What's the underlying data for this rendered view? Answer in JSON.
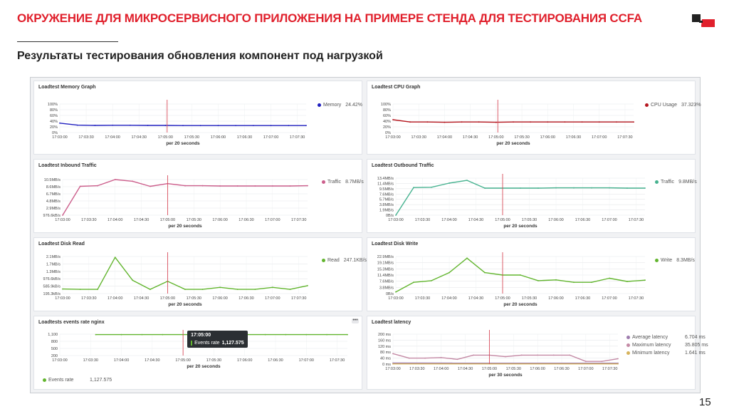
{
  "slide": {
    "title": "ОКРУЖЕНИЕ ДЛЯ МИКРОСЕРВИСНОГО ПРИЛОЖЕНИЯ НА ПРИМЕРЕ СТЕНДА ДЛЯ ТЕСТИРОВАНИЯ CCFA",
    "subtitle": "Результаты тестирования обновления компонент под нагрузкой",
    "page_number": "15",
    "accent_color": "#e0202c"
  },
  "chart_data": [
    {
      "id": "memory",
      "type": "line",
      "title": "Loadtest Memory Graph",
      "xlabel": "per 20 seconds",
      "x": [
        "17:03:00",
        "17:03:30",
        "17:04:00",
        "17:04:30",
        "17:05:00",
        "17:05:30",
        "17:06:00",
        "17:06:30",
        "17:07:00",
        "17:07:30"
      ],
      "x_values": [
        0,
        30,
        60,
        90,
        120,
        150,
        180,
        210,
        240,
        270
      ],
      "yticks": [
        "100%",
        "80%",
        "60%",
        "40%",
        "20%",
        "0%"
      ],
      "ylim": [
        0,
        100
      ],
      "marker_x": 122,
      "series": [
        {
          "name": "Memory",
          "legend_value": "24.42%",
          "color": "#1f1fbf",
          "points": [
            [
              0,
              33
            ],
            [
              20,
              26
            ],
            [
              40,
              25
            ],
            [
              60,
              25.5
            ],
            [
              80,
              25.5
            ],
            [
              100,
              25
            ],
            [
              120,
              25
            ],
            [
              140,
              24.5
            ],
            [
              160,
              24.5
            ],
            [
              180,
              24.5
            ],
            [
              200,
              24.5
            ],
            [
              220,
              24.4
            ],
            [
              240,
              24.4
            ],
            [
              260,
              24.4
            ],
            [
              280,
              24.4
            ]
          ]
        }
      ]
    },
    {
      "id": "cpu",
      "type": "line",
      "title": "Loadtest CPU Graph",
      "xlabel": "per 20 seconds",
      "x": [
        "17:03:00",
        "17:03:30",
        "17:04:00",
        "17:04:30",
        "17:05:00",
        "17:05:30",
        "17:06:00",
        "17:06:30",
        "17:07:00",
        "17:07:30"
      ],
      "x_values": [
        0,
        30,
        60,
        90,
        120,
        150,
        180,
        210,
        240,
        270
      ],
      "yticks": [
        "100%",
        "80%",
        "60%",
        "40%",
        "20%",
        "0%"
      ],
      "ylim": [
        0,
        100
      ],
      "marker_x": 122,
      "series": [
        {
          "name": "CPU Usage",
          "legend_value": "37.323%",
          "color": "#b5171f",
          "points": [
            [
              0,
              45
            ],
            [
              20,
              37
            ],
            [
              40,
              37
            ],
            [
              60,
              36
            ],
            [
              80,
              37
            ],
            [
              100,
              37
            ],
            [
              120,
              36
            ],
            [
              140,
              37
            ],
            [
              160,
              37
            ],
            [
              180,
              37
            ],
            [
              200,
              37
            ],
            [
              220,
              37
            ],
            [
              240,
              37
            ],
            [
              260,
              37
            ],
            [
              280,
              37
            ]
          ]
        }
      ]
    },
    {
      "id": "inbound",
      "type": "line",
      "title": "Loadtest Inbound Traffic",
      "xlabel": "per 20 seconds",
      "x": [
        "17:03:00",
        "17:03:30",
        "17:04:00",
        "17:04:30",
        "17:05:00",
        "17:05:30",
        "17:06:00",
        "17:06:30",
        "17:07:00",
        "17:07:30"
      ],
      "x_values": [
        0,
        30,
        60,
        90,
        120,
        150,
        180,
        210,
        240,
        270
      ],
      "yticks": [
        "10.5MB/s",
        "8.6MB/s",
        "6.7MB/s",
        "4.8MB/s",
        "2.9MB/s",
        "976.6kB/s"
      ],
      "ylim": [
        0,
        10.5
      ],
      "marker_x": 120,
      "series": [
        {
          "name": "Traffic",
          "legend_value": "8.7MB/s",
          "color": "#cc5f8c",
          "points": [
            [
              0,
              0
            ],
            [
              20,
              8.5
            ],
            [
              40,
              8.7
            ],
            [
              60,
              10.5
            ],
            [
              80,
              10
            ],
            [
              100,
              8.5
            ],
            [
              120,
              9.3
            ],
            [
              140,
              8.7
            ],
            [
              160,
              8.7
            ],
            [
              180,
              8.6
            ],
            [
              200,
              8.6
            ],
            [
              220,
              8.6
            ],
            [
              240,
              8.6
            ],
            [
              260,
              8.6
            ],
            [
              280,
              8.7
            ]
          ]
        }
      ]
    },
    {
      "id": "outbound",
      "type": "line",
      "title": "Loadtest Outbound Traffic",
      "xlabel": "per 20 seconds",
      "x": [
        "17:03:00",
        "17:03:30",
        "17:04:00",
        "17:04:30",
        "17:05:00",
        "17:05:30",
        "17:06:00",
        "17:06:30",
        "17:07:00",
        "17:07:30"
      ],
      "x_values": [
        0,
        30,
        60,
        90,
        120,
        150,
        180,
        210,
        240,
        270
      ],
      "yticks": [
        "13.4MB/s",
        "11.4MB/s",
        "9.5MB/s",
        "7.6MB/s",
        "5.7MB/s",
        "3.8MB/s",
        "1.9MB/s",
        "0B/s"
      ],
      "ylim": [
        0,
        13.4
      ],
      "marker_x": 120,
      "series": [
        {
          "name": "Traffic",
          "legend_value": "9.8MB/s",
          "color": "#46b28f",
          "points": [
            [
              0,
              0
            ],
            [
              20,
              10
            ],
            [
              40,
              10.1
            ],
            [
              60,
              11.6
            ],
            [
              80,
              12.6
            ],
            [
              100,
              9.8
            ],
            [
              120,
              9.8
            ],
            [
              140,
              9.8
            ],
            [
              160,
              9.8
            ],
            [
              180,
              9.9
            ],
            [
              200,
              9.9
            ],
            [
              220,
              9.9
            ],
            [
              240,
              9.9
            ],
            [
              260,
              9.8
            ],
            [
              280,
              9.8
            ]
          ]
        }
      ]
    },
    {
      "id": "disk-read",
      "type": "line",
      "title": "Loadtest Disk Read",
      "xlabel": "per 20 seconds",
      "x": [
        "17:03:00",
        "17:03:30",
        "17:04:00",
        "17:04:30",
        "17:05:00",
        "17:05:30",
        "17:06:00",
        "17:06:30",
        "17:07:00",
        "17:07:30"
      ],
      "x_values": [
        0,
        30,
        60,
        90,
        120,
        150,
        180,
        210,
        240,
        270
      ],
      "yticks": [
        "2.1MB/s",
        "1.7MB/s",
        "1.3MB/s",
        "976.6kB/s",
        "585.9kB/s",
        "195.3kB/s"
      ],
      "ylim": [
        0,
        2.1
      ],
      "marker_x": 120,
      "series": [
        {
          "name": "Read",
          "legend_value": "247.1KB/s",
          "color": "#62b52e",
          "points": [
            [
              0,
              0.26
            ],
            [
              20,
              0.24
            ],
            [
              40,
              0.24
            ],
            [
              60,
              2.05
            ],
            [
              80,
              0.75
            ],
            [
              100,
              0.24
            ],
            [
              120,
              0.7
            ],
            [
              140,
              0.24
            ],
            [
              160,
              0.24
            ],
            [
              180,
              0.35
            ],
            [
              200,
              0.24
            ],
            [
              220,
              0.24
            ],
            [
              240,
              0.35
            ],
            [
              260,
              0.24
            ],
            [
              280,
              0.45
            ]
          ]
        }
      ]
    },
    {
      "id": "disk-write",
      "type": "line",
      "title": "Loadtest Disk Write",
      "xlabel": "per 20 seconds",
      "x": [
        "17:03:00",
        "17:03:30",
        "17:04:00",
        "17:04:30",
        "17:05:00",
        "17:05:30",
        "17:06:00",
        "17:06:30",
        "17:07:00",
        "17:07:30"
      ],
      "x_values": [
        0,
        30,
        60,
        90,
        120,
        150,
        180,
        210,
        240,
        270
      ],
      "yticks": [
        "22.9MB/s",
        "19.1MB/s",
        "15.3MB/s",
        "11.4MB/s",
        "7.6MB/s",
        "3.8MB/s",
        "0B/s"
      ],
      "ylim": [
        0,
        23
      ],
      "marker_x": 120,
      "series": [
        {
          "name": "Write",
          "legend_value": "8.3MB/s",
          "color": "#62b52e",
          "points": [
            [
              0,
              1
            ],
            [
              20,
              7
            ],
            [
              40,
              8
            ],
            [
              60,
              13
            ],
            [
              80,
              22
            ],
            [
              100,
              13
            ],
            [
              120,
              11.5
            ],
            [
              140,
              11.5
            ],
            [
              160,
              8
            ],
            [
              180,
              8.5
            ],
            [
              200,
              7
            ],
            [
              220,
              7
            ],
            [
              240,
              9.5
            ],
            [
              260,
              7.5
            ],
            [
              280,
              8.3
            ]
          ]
        }
      ]
    },
    {
      "id": "events",
      "type": "line",
      "title": "Loadtests events rate nginx",
      "xlabel": "per 20 seconds",
      "x": [
        "17:03:00",
        "17:03:30",
        "17:04:00",
        "17:04:30",
        "17:05:00",
        "17:05:30",
        "17:06:00",
        "17:06:30",
        "17:07:00",
        "17:07:30"
      ],
      "x_values": [
        0,
        30,
        60,
        90,
        120,
        150,
        180,
        210,
        240,
        270
      ],
      "yticks": [
        "1,100",
        "800",
        "500",
        "200"
      ],
      "ylim": [
        0,
        1150
      ],
      "marker_x": 120,
      "series": [
        {
          "name": "Events rate",
          "legend_value": "1,127.575",
          "color": "#62b52e",
          "points": [
            [
              35,
              1127
            ],
            [
              60,
              1127
            ],
            [
              80,
              1127
            ],
            [
              100,
              1127
            ],
            [
              120,
              1127
            ],
            [
              140,
              1127
            ],
            [
              160,
              1127
            ],
            [
              180,
              1127
            ],
            [
              200,
              1127
            ],
            [
              220,
              1127
            ],
            [
              240,
              1127
            ],
            [
              260,
              1127
            ],
            [
              280,
              1127
            ]
          ]
        }
      ],
      "tooltip": {
        "time": "17:05:00",
        "label": "Events rate",
        "value": "1,127.575"
      }
    },
    {
      "id": "latency",
      "type": "line",
      "title": "Loadtest latency",
      "xlabel": "per 30 seconds",
      "x": [
        "17:03:00",
        "17:03:30",
        "17:04:00",
        "17:04:30",
        "17:05:00",
        "17:05:30",
        "17:06:00",
        "17:06:30",
        "17:07:00",
        "17:07:30"
      ],
      "x_values": [
        0,
        30,
        60,
        90,
        120,
        150,
        180,
        210,
        240,
        270
      ],
      "yticks": [
        "200 ms",
        "160 ms",
        "120 ms",
        "80 ms",
        "40 ms",
        "0 ms"
      ],
      "ylim": [
        0,
        200
      ],
      "marker_x": 120,
      "series": [
        {
          "name": "Average latency",
          "legend_value": "6.704 ms",
          "color": "#9e7cae",
          "points": [
            [
              0,
              7
            ],
            [
              280,
              6.7
            ]
          ]
        },
        {
          "name": "Maximum latency",
          "legend_value": "35.805 ms",
          "color": "#c48aa5",
          "points": [
            [
              0,
              70
            ],
            [
              20,
              40
            ],
            [
              40,
              40
            ],
            [
              60,
              44
            ],
            [
              80,
              32
            ],
            [
              100,
              60
            ],
            [
              120,
              60
            ],
            [
              140,
              50
            ],
            [
              160,
              60
            ],
            [
              180,
              60
            ],
            [
              200,
              60
            ],
            [
              220,
              60
            ],
            [
              240,
              18
            ],
            [
              260,
              18
            ],
            [
              280,
              36
            ]
          ]
        },
        {
          "name": "Minimum latency",
          "legend_value": "1.641 ms",
          "color": "#d6b35c",
          "points": [
            [
              0,
              1.6
            ],
            [
              280,
              1.6
            ]
          ]
        }
      ]
    }
  ]
}
